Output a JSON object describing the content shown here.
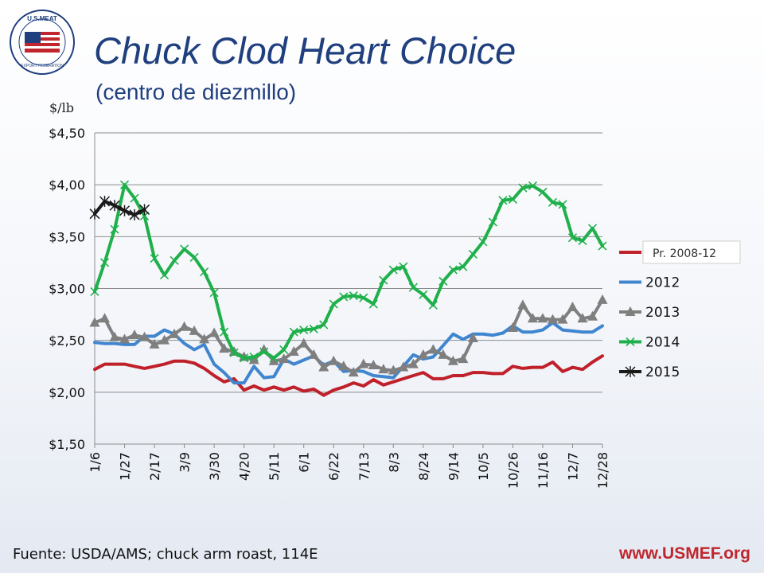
{
  "header": {
    "title": "Chuck Clod Heart Choice",
    "subtitle": "(centro de diezmillo)",
    "logo_text": "U.S.MEAT EXPORT FEDERATION"
  },
  "footer": {
    "source": "Fuente: USDA/AMS; chuck arm roast, 114E",
    "website": "www.USMEF.org"
  },
  "chart_data": {
    "type": "line",
    "ylabel": "$/lb",
    "ylim": [
      1.5,
      4.5
    ],
    "yticks": [
      1.5,
      2.0,
      2.5,
      3.0,
      3.5,
      4.0,
      4.5
    ],
    "ytick_labels": [
      "$1,50",
      "$2,00",
      "$2,50",
      "$3,00",
      "$3,50",
      "$4,00",
      "$4,50"
    ],
    "categories": [
      "1/6",
      "1/13",
      "1/20",
      "1/27",
      "2/3",
      "2/10",
      "2/17",
      "2/24",
      "3/2",
      "3/9",
      "3/16",
      "3/23",
      "3/30",
      "4/6",
      "4/13",
      "4/20",
      "4/27",
      "5/4",
      "5/11",
      "5/18",
      "5/25",
      "6/1",
      "6/8",
      "6/15",
      "6/22",
      "6/29",
      "7/6",
      "7/13",
      "7/20",
      "7/27",
      "8/3",
      "8/10",
      "8/17",
      "8/24",
      "8/31",
      "9/7",
      "9/14",
      "9/21",
      "9/28",
      "10/5",
      "10/12",
      "10/19",
      "10/26",
      "11/2",
      "11/9",
      "11/16",
      "11/23",
      "11/30",
      "12/7",
      "12/14",
      "12/21",
      "12/28"
    ],
    "xtick_labels": [
      "1/6",
      "1/27",
      "2/17",
      "3/9",
      "3/30",
      "4/20",
      "5/11",
      "6/1",
      "6/22",
      "7/13",
      "8/3",
      "8/24",
      "9/14",
      "10/5",
      "10/26",
      "11/16",
      "12/7",
      "12/28"
    ],
    "xtick_every": 3,
    "grid": "horizontal",
    "legend_position": "right",
    "series": [
      {
        "name": "Pr. 2008-12",
        "color": "#c0202a",
        "marker": "none",
        "highlight": true,
        "values": [
          2.22,
          2.27,
          2.27,
          2.27,
          2.25,
          2.23,
          2.25,
          2.27,
          2.3,
          2.3,
          2.28,
          2.23,
          2.16,
          2.1,
          2.13,
          2.02,
          2.06,
          2.02,
          2.05,
          2.02,
          2.05,
          2.01,
          2.03,
          1.97,
          2.02,
          2.05,
          2.09,
          2.06,
          2.12,
          2.07,
          2.1,
          2.13,
          2.16,
          2.19,
          2.13,
          2.13,
          2.16,
          2.16,
          2.19,
          2.19,
          2.18,
          2.18,
          2.25,
          2.23,
          2.24,
          2.24,
          2.29,
          2.2,
          2.24,
          2.22,
          2.29,
          2.35
        ]
      },
      {
        "name": "2012",
        "color": "#3f86cf",
        "marker": "none",
        "values": [
          2.48,
          2.47,
          2.47,
          2.46,
          2.46,
          2.54,
          2.54,
          2.6,
          2.56,
          2.47,
          2.41,
          2.46,
          2.27,
          2.19,
          2.09,
          2.09,
          2.25,
          2.14,
          2.15,
          2.32,
          2.27,
          2.31,
          2.35,
          2.26,
          2.3,
          2.2,
          2.21,
          2.2,
          2.16,
          2.15,
          2.14,
          2.25,
          2.36,
          2.32,
          2.34,
          2.45,
          2.56,
          2.51,
          2.56,
          2.56,
          2.55,
          2.57,
          2.64,
          2.58,
          2.58,
          2.6,
          2.67,
          2.6,
          2.59,
          2.58,
          2.58,
          2.64
        ]
      },
      {
        "name": "2013",
        "color": "#7f7f7f",
        "marker": "triangle",
        "values": [
          2.67,
          2.71,
          2.53,
          2.51,
          2.55,
          2.53,
          2.46,
          2.5,
          2.56,
          2.63,
          2.59,
          2.51,
          2.57,
          2.42,
          2.39,
          2.34,
          2.31,
          2.41,
          2.3,
          2.32,
          2.39,
          2.47,
          2.36,
          2.24,
          2.3,
          2.25,
          2.19,
          2.27,
          2.26,
          2.22,
          2.21,
          2.24,
          2.27,
          2.36,
          2.41,
          2.36,
          2.3,
          2.32,
          2.52,
          null,
          null,
          null,
          2.62,
          2.84,
          2.71,
          2.71,
          2.7,
          2.7,
          2.82,
          2.71,
          2.73,
          2.89
        ]
      },
      {
        "name": "2014",
        "color": "#1fb04b",
        "marker": "x",
        "values": [
          2.97,
          3.25,
          3.57,
          4.0,
          3.87,
          3.7,
          3.29,
          3.13,
          3.27,
          3.38,
          3.3,
          3.16,
          2.96,
          2.58,
          2.38,
          2.33,
          2.34,
          2.39,
          2.33,
          2.41,
          2.58,
          2.6,
          2.61,
          2.65,
          2.85,
          2.92,
          2.93,
          2.91,
          2.85,
          3.08,
          3.18,
          3.21,
          3.01,
          2.94,
          2.84,
          3.07,
          3.18,
          3.21,
          3.33,
          3.45,
          3.64,
          3.85,
          3.86,
          3.97,
          3.99,
          3.93,
          3.83,
          3.81,
          3.49,
          3.46,
          3.58,
          3.41
        ]
      },
      {
        "name": "2015",
        "color": "#1a1a1a",
        "marker": "star",
        "values": [
          3.72,
          3.84,
          3.8,
          3.75,
          3.71,
          3.76,
          null,
          null,
          null,
          null,
          null,
          null,
          null,
          null,
          null,
          null,
          null,
          null,
          null,
          null,
          null,
          null,
          null,
          null,
          null,
          null,
          null,
          null,
          null,
          null,
          null,
          null,
          null,
          null,
          null,
          null,
          null,
          null,
          null,
          null,
          null,
          null,
          null,
          null,
          null,
          null,
          null,
          null,
          null,
          null,
          null,
          null
        ]
      }
    ]
  }
}
